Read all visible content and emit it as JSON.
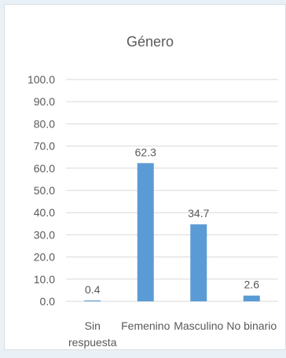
{
  "chart_data": {
    "type": "bar",
    "title": "Género",
    "categories": [
      "Sin respuesta",
      "Femenino",
      "Masculino",
      "No binario"
    ],
    "category_lines": [
      [
        "Sin",
        "respuesta"
      ],
      [
        "Femenino"
      ],
      [
        "Masculino"
      ],
      [
        "No binario"
      ]
    ],
    "values": [
      0.4,
      62.3,
      34.7,
      2.6
    ],
    "value_labels": [
      "0.4",
      "62.3",
      "34.7",
      "2.6"
    ],
    "ylim": [
      0,
      100
    ],
    "ytick_labels": [
      "0.0",
      "10.0",
      "20.0",
      "30.0",
      "40.0",
      "50.0",
      "60.0",
      "70.0",
      "80.0",
      "90.0",
      "100.0"
    ],
    "xlabel": "",
    "ylabel": "",
    "grid": true,
    "legend": "none",
    "colors": {
      "bar": "#5b9bd5",
      "grid": "#d9d9d9",
      "text": "#595959"
    }
  }
}
